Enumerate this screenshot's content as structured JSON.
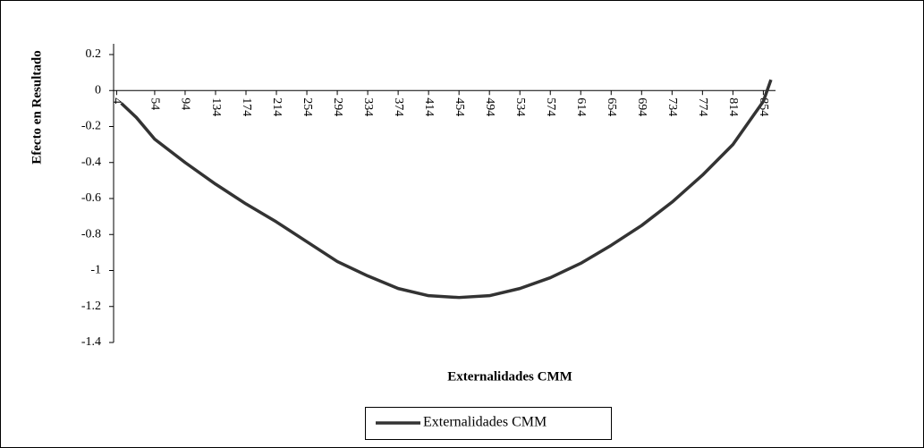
{
  "chart_data": {
    "type": "line",
    "y_label": "Efecto en Resultado",
    "x_label": "Externalidades CMM",
    "x": [
      10,
      30,
      54,
      94,
      134,
      174,
      214,
      254,
      294,
      334,
      374,
      414,
      454,
      494,
      534,
      574,
      614,
      654,
      694,
      734,
      774,
      814,
      854,
      864
    ],
    "series": [
      {
        "name": "Externalidades CMM",
        "color": "#333333",
        "values": [
          -0.07,
          -0.15,
          -0.27,
          -0.4,
          -0.52,
          -0.63,
          -0.73,
          -0.84,
          -0.95,
          -1.03,
          -1.1,
          -1.14,
          -1.15,
          -1.14,
          -1.1,
          -1.04,
          -0.96,
          -0.86,
          -0.75,
          -0.62,
          -0.47,
          -0.3,
          -0.06,
          0.06
        ]
      }
    ],
    "xlim": [
      0,
      870
    ],
    "xticks": [
      4,
      54,
      94,
      134,
      174,
      214,
      254,
      294,
      334,
      374,
      414,
      454,
      494,
      534,
      574,
      614,
      654,
      694,
      734,
      774,
      814,
      854
    ],
    "ylim": [
      -1.4,
      0.2
    ],
    "yticks": [
      0.2,
      0,
      -0.2,
      -0.4,
      -0.6,
      -0.8,
      -1,
      -1.2,
      -1.4
    ],
    "legend": "bottom"
  }
}
